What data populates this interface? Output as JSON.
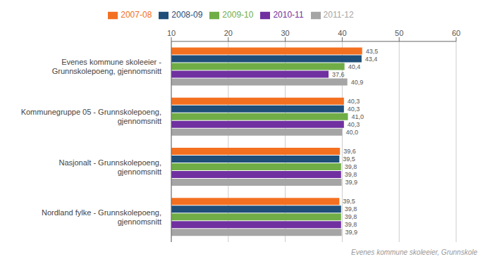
{
  "chart_data": {
    "type": "bar",
    "orientation": "horizontal",
    "categories": [
      "Evenes kommune skoleeier -\nGrunnskolepoeng, gjennomsnitt",
      "Kommunegruppe 05 - Grunnskolepoeng,\ngjennomsnitt",
      "Nasjonalt - Grunnskolepoeng,\ngjennomsnitt",
      "Nordland fylke - Grunnskolepoeng,\ngjennomsnitt"
    ],
    "series": [
      {
        "name": "2007-08",
        "color": "#f37021",
        "values": [
          43.5,
          40.3,
          39.6,
          39.5
        ],
        "value_labels": [
          "43,5",
          "40,3",
          "39,6",
          "39,5"
        ]
      },
      {
        "name": "2008-09",
        "color": "#1f4e79",
        "values": [
          43.4,
          40.3,
          39.5,
          39.8
        ],
        "value_labels": [
          "43,4",
          "40,3",
          "39,5",
          "39,8"
        ]
      },
      {
        "name": "2009-10",
        "color": "#70ad47",
        "values": [
          40.4,
          41.0,
          39.8,
          39.8
        ],
        "value_labels": [
          "40,4",
          "41,0",
          "39,8",
          "39,8"
        ]
      },
      {
        "name": "2010-11",
        "color": "#7030a0",
        "values": [
          37.6,
          40.3,
          39.8,
          39.8
        ],
        "value_labels": [
          "37,6",
          "40,3",
          "39,8",
          "39,8"
        ]
      },
      {
        "name": "2011-12",
        "color": "#a5a5a5",
        "values": [
          40.9,
          40.0,
          39.9,
          39.9
        ],
        "value_labels": [
          "40,9",
          "40,0",
          "39,9",
          "39,9"
        ]
      }
    ],
    "xlim": [
      10,
      60
    ],
    "xticks": [
      10,
      20,
      30,
      40,
      50,
      60
    ],
    "grid": true,
    "data_labels": true,
    "legend": "top",
    "annotations": [
      "Evenes kommune skoleeier, Grunnskole"
    ]
  }
}
